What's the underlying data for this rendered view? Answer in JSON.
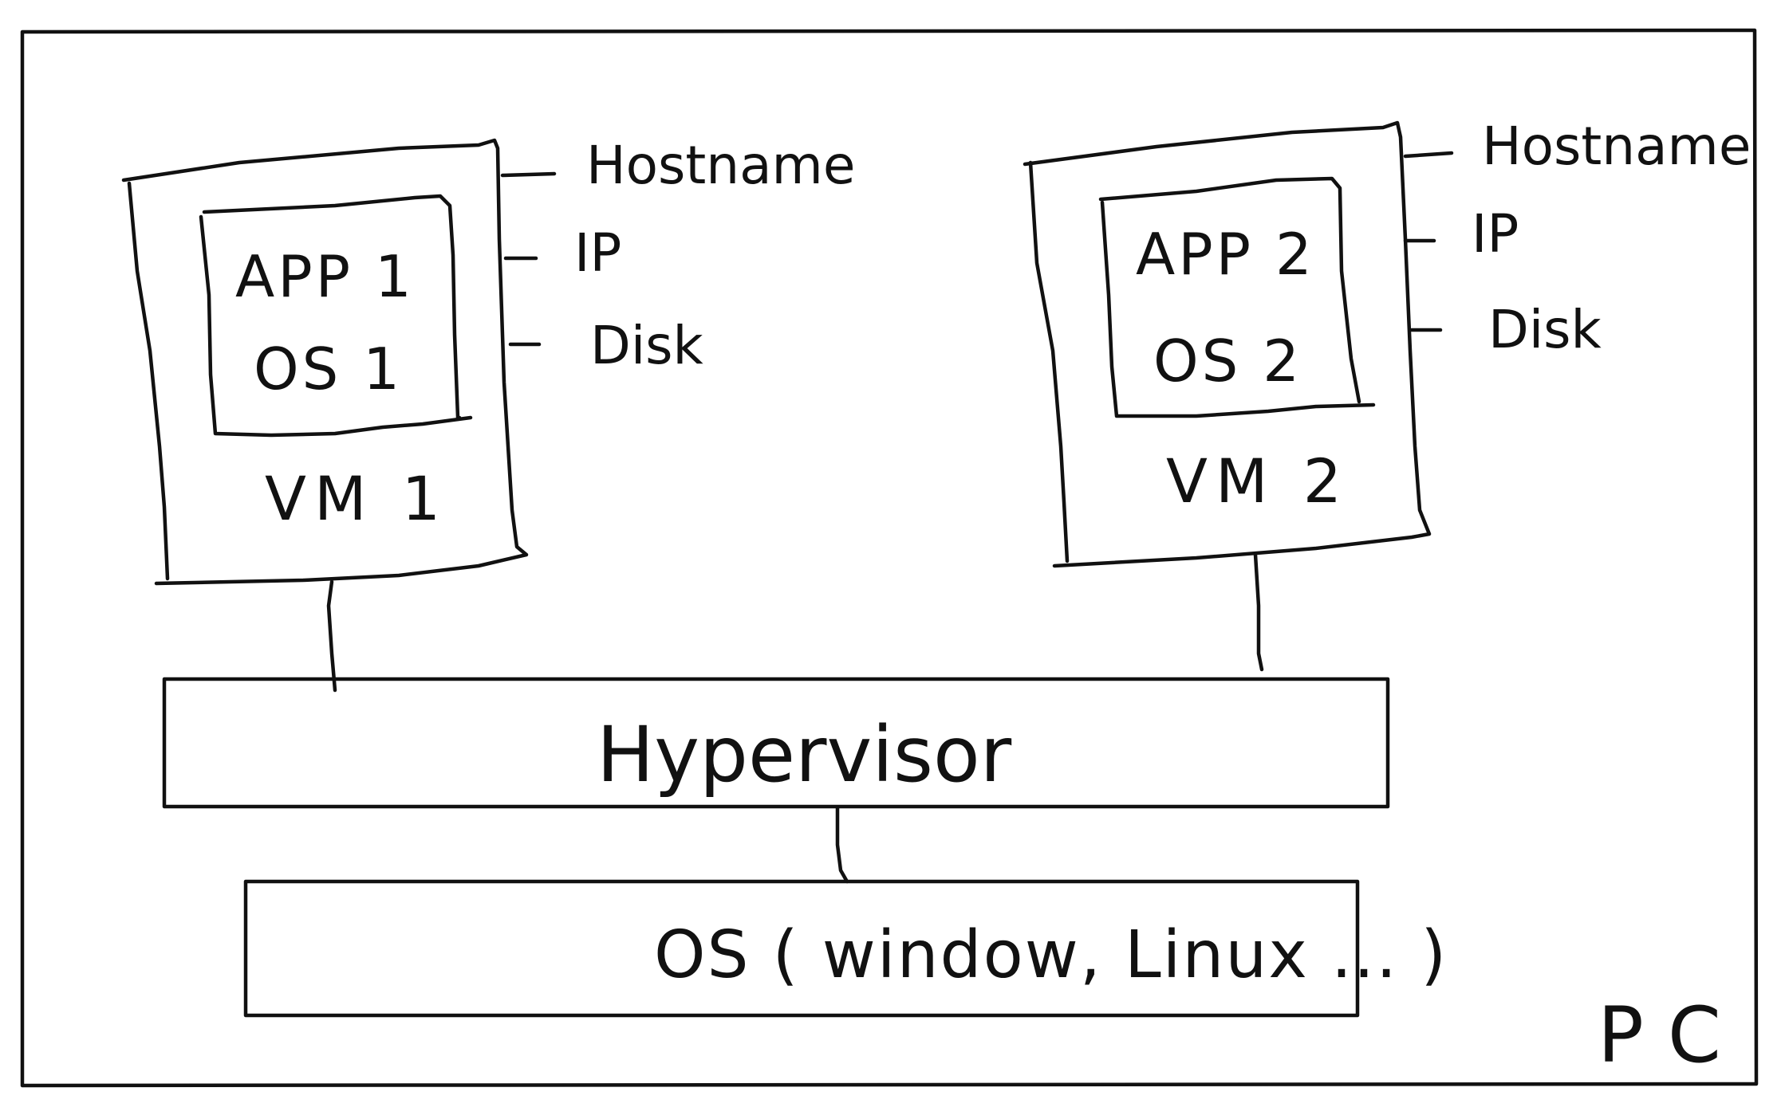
{
  "container": {
    "label": "PC"
  },
  "vms": [
    {
      "app_label": "APP 1",
      "os_label": "OS 1",
      "vm_label": "VM 1",
      "attributes": [
        "Hostname",
        "IP",
        "Disk"
      ]
    },
    {
      "app_label": "APP 2",
      "os_label": "OS 2",
      "vm_label": "VM 2",
      "attributes": [
        "Hostname",
        "IP",
        "Disk"
      ]
    }
  ],
  "hypervisor": {
    "label": "Hypervisor"
  },
  "host_os": {
    "label": "OS ( window, Linux ... )"
  }
}
